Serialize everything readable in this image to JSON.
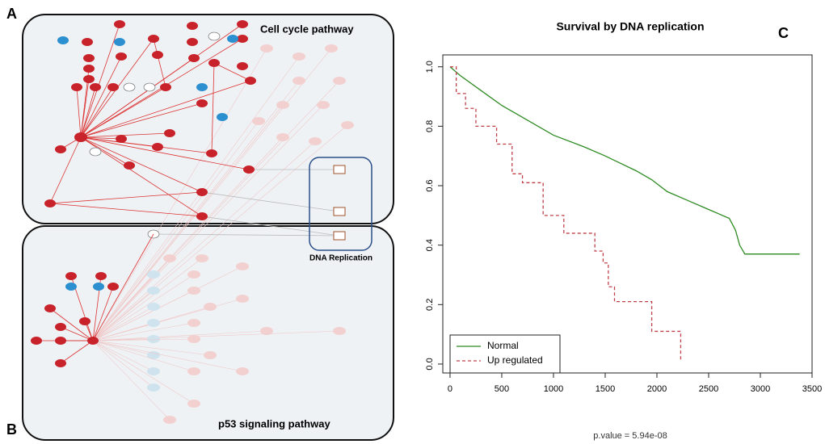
{
  "panels": {
    "a_label": "A",
    "b_label": "B",
    "c_label": "C",
    "cell_cycle": "Cell cycle pathway",
    "p53": "p53 signaling pathway",
    "dna_replication": "DNA Replication"
  },
  "chart_data": {
    "type": "line",
    "title": "Survival by DNA replication",
    "annotation": "p.value = 5.94e-08",
    "xlim": [
      -70,
      3500
    ],
    "ylim": [
      -0.03,
      1.04
    ],
    "xticks": [
      0,
      500,
      1000,
      1500,
      2000,
      2500,
      3000,
      3500
    ],
    "yticks": [
      {
        "value": 0,
        "label": "0.0"
      },
      0.2,
      0.4,
      0.6,
      0.8,
      {
        "value": 1,
        "label": "1.0"
      }
    ],
    "legend": "bottom-left",
    "series": [
      {
        "name": "Normal",
        "color": "#2e8b22",
        "dash": false,
        "x": [
          0,
          100,
          300,
          500,
          700,
          1000,
          1300,
          1500,
          1800,
          1950,
          2100,
          2300,
          2500,
          2700,
          2760,
          2800,
          2850,
          3380
        ],
        "values": [
          1.0,
          0.97,
          0.92,
          0.87,
          0.83,
          0.77,
          0.73,
          0.7,
          0.65,
          0.62,
          0.58,
          0.55,
          0.52,
          0.49,
          0.45,
          0.4,
          0.37,
          0.37
        ]
      },
      {
        "name": "Up regulated",
        "color": "#c0404a",
        "dash": true,
        "x": [
          0,
          60,
          60,
          150,
          150,
          250,
          250,
          450,
          450,
          600,
          600,
          700,
          700,
          900,
          900,
          1100,
          1100,
          1400,
          1400,
          1480,
          1480,
          1530,
          1530,
          1590,
          1590,
          1950,
          1950,
          2230,
          2230
        ],
        "values": [
          1,
          1,
          0.91,
          0.91,
          0.86,
          0.86,
          0.8,
          0.8,
          0.74,
          0.74,
          0.64,
          0.64,
          0.61,
          0.61,
          0.5,
          0.5,
          0.44,
          0.44,
          0.38,
          0.38,
          0.34,
          0.34,
          0.26,
          0.26,
          0.21,
          0.21,
          0.11,
          0.11,
          0.01
        ]
      }
    ]
  }
}
